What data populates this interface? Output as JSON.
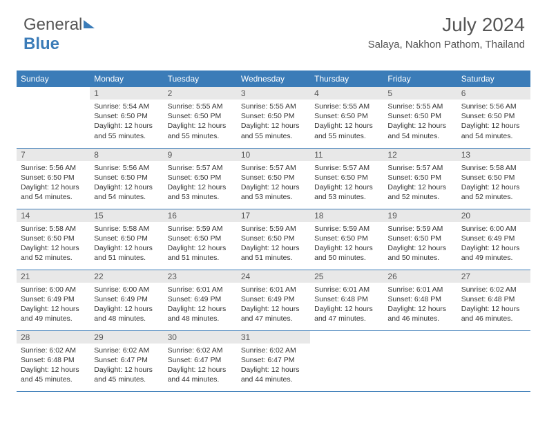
{
  "logo": {
    "part1": "General",
    "part2": "Blue"
  },
  "title": "July 2024",
  "location": "Salaya, Nakhon Pathom, Thailand",
  "colors": {
    "accent": "#3b7cb8",
    "headerText": "#ffffff",
    "dayBg": "#e8e8e8",
    "text": "#333333",
    "titleText": "#555555",
    "background": "#ffffff"
  },
  "dayNames": [
    "Sunday",
    "Monday",
    "Tuesday",
    "Wednesday",
    "Thursday",
    "Friday",
    "Saturday"
  ],
  "weeks": [
    [
      null,
      {
        "n": "1",
        "sr": "5:54 AM",
        "ss": "6:50 PM",
        "dl": "12 hours and 55 minutes."
      },
      {
        "n": "2",
        "sr": "5:55 AM",
        "ss": "6:50 PM",
        "dl": "12 hours and 55 minutes."
      },
      {
        "n": "3",
        "sr": "5:55 AM",
        "ss": "6:50 PM",
        "dl": "12 hours and 55 minutes."
      },
      {
        "n": "4",
        "sr": "5:55 AM",
        "ss": "6:50 PM",
        "dl": "12 hours and 55 minutes."
      },
      {
        "n": "5",
        "sr": "5:55 AM",
        "ss": "6:50 PM",
        "dl": "12 hours and 54 minutes."
      },
      {
        "n": "6",
        "sr": "5:56 AM",
        "ss": "6:50 PM",
        "dl": "12 hours and 54 minutes."
      }
    ],
    [
      {
        "n": "7",
        "sr": "5:56 AM",
        "ss": "6:50 PM",
        "dl": "12 hours and 54 minutes."
      },
      {
        "n": "8",
        "sr": "5:56 AM",
        "ss": "6:50 PM",
        "dl": "12 hours and 54 minutes."
      },
      {
        "n": "9",
        "sr": "5:57 AM",
        "ss": "6:50 PM",
        "dl": "12 hours and 53 minutes."
      },
      {
        "n": "10",
        "sr": "5:57 AM",
        "ss": "6:50 PM",
        "dl": "12 hours and 53 minutes."
      },
      {
        "n": "11",
        "sr": "5:57 AM",
        "ss": "6:50 PM",
        "dl": "12 hours and 53 minutes."
      },
      {
        "n": "12",
        "sr": "5:57 AM",
        "ss": "6:50 PM",
        "dl": "12 hours and 52 minutes."
      },
      {
        "n": "13",
        "sr": "5:58 AM",
        "ss": "6:50 PM",
        "dl": "12 hours and 52 minutes."
      }
    ],
    [
      {
        "n": "14",
        "sr": "5:58 AM",
        "ss": "6:50 PM",
        "dl": "12 hours and 52 minutes."
      },
      {
        "n": "15",
        "sr": "5:58 AM",
        "ss": "6:50 PM",
        "dl": "12 hours and 51 minutes."
      },
      {
        "n": "16",
        "sr": "5:59 AM",
        "ss": "6:50 PM",
        "dl": "12 hours and 51 minutes."
      },
      {
        "n": "17",
        "sr": "5:59 AM",
        "ss": "6:50 PM",
        "dl": "12 hours and 51 minutes."
      },
      {
        "n": "18",
        "sr": "5:59 AM",
        "ss": "6:50 PM",
        "dl": "12 hours and 50 minutes."
      },
      {
        "n": "19",
        "sr": "5:59 AM",
        "ss": "6:50 PM",
        "dl": "12 hours and 50 minutes."
      },
      {
        "n": "20",
        "sr": "6:00 AM",
        "ss": "6:49 PM",
        "dl": "12 hours and 49 minutes."
      }
    ],
    [
      {
        "n": "21",
        "sr": "6:00 AM",
        "ss": "6:49 PM",
        "dl": "12 hours and 49 minutes."
      },
      {
        "n": "22",
        "sr": "6:00 AM",
        "ss": "6:49 PM",
        "dl": "12 hours and 48 minutes."
      },
      {
        "n": "23",
        "sr": "6:01 AM",
        "ss": "6:49 PM",
        "dl": "12 hours and 48 minutes."
      },
      {
        "n": "24",
        "sr": "6:01 AM",
        "ss": "6:49 PM",
        "dl": "12 hours and 47 minutes."
      },
      {
        "n": "25",
        "sr": "6:01 AM",
        "ss": "6:48 PM",
        "dl": "12 hours and 47 minutes."
      },
      {
        "n": "26",
        "sr": "6:01 AM",
        "ss": "6:48 PM",
        "dl": "12 hours and 46 minutes."
      },
      {
        "n": "27",
        "sr": "6:02 AM",
        "ss": "6:48 PM",
        "dl": "12 hours and 46 minutes."
      }
    ],
    [
      {
        "n": "28",
        "sr": "6:02 AM",
        "ss": "6:48 PM",
        "dl": "12 hours and 45 minutes."
      },
      {
        "n": "29",
        "sr": "6:02 AM",
        "ss": "6:47 PM",
        "dl": "12 hours and 45 minutes."
      },
      {
        "n": "30",
        "sr": "6:02 AM",
        "ss": "6:47 PM",
        "dl": "12 hours and 44 minutes."
      },
      {
        "n": "31",
        "sr": "6:02 AM",
        "ss": "6:47 PM",
        "dl": "12 hours and 44 minutes."
      },
      null,
      null,
      null
    ]
  ],
  "labels": {
    "sunrise": "Sunrise:",
    "sunset": "Sunset:",
    "daylight": "Daylight:"
  }
}
